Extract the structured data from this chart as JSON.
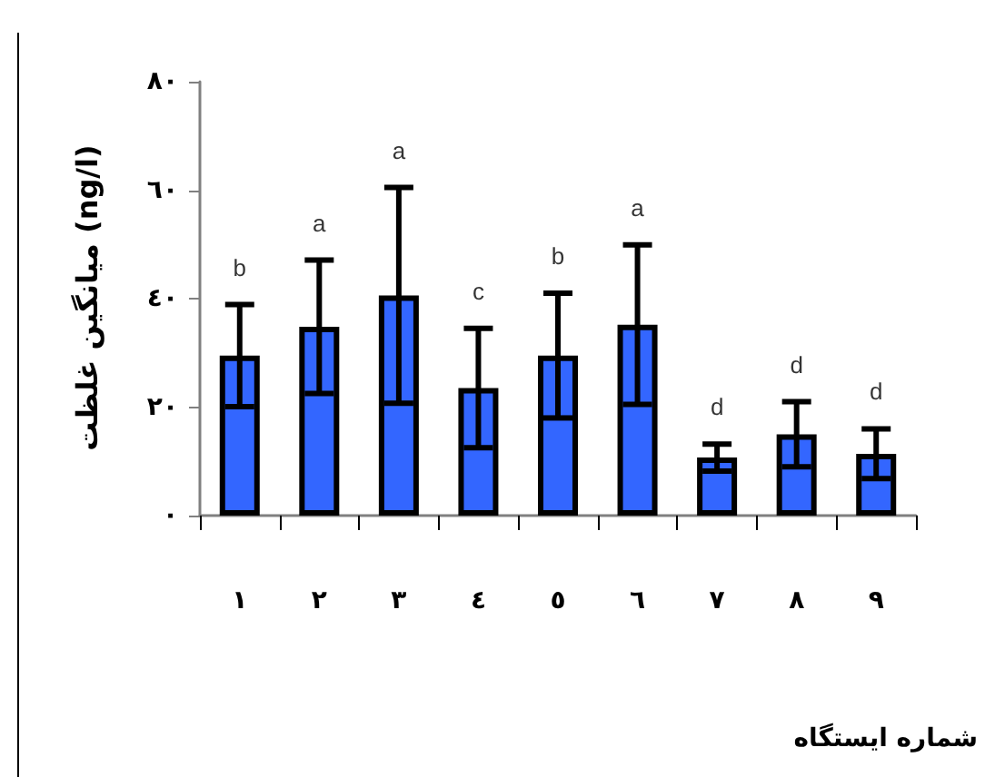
{
  "chart_data": {
    "type": "bar",
    "xlabel": "شماره ایستگاه",
    "ylabel": "میانگین غلظت (ng/l)",
    "categories": [
      "١",
      "٢",
      "٣",
      "٤",
      "٥",
      "٦",
      "٧",
      "٨",
      "٩"
    ],
    "values": [
      29.5,
      34.8,
      40.6,
      23.5,
      29.5,
      35.2,
      10.7,
      15.0,
      11.4
    ],
    "errors": [
      9.4,
      12.3,
      19.9,
      11.0,
      11.5,
      14.7,
      2.5,
      6.0,
      4.6
    ],
    "color": "#3366ff",
    "ylim": [
      0,
      80
    ],
    "yticks": [
      {
        "value": 0,
        "label": "٠"
      },
      {
        "value": 20,
        "label": "٢٠"
      },
      {
        "value": 40,
        "label": "٤٠"
      },
      {
        "value": 60,
        "label": "٦٠"
      },
      {
        "value": 80,
        "label": "٨٠"
      }
    ],
    "grid": false,
    "annotations": [
      {
        "text": "b",
        "x": "١",
        "y": 38.9
      },
      {
        "text": "a",
        "x": "٢",
        "y": 47.1
      },
      {
        "text": "a",
        "x": "٣",
        "y": 60.5
      },
      {
        "text": "c",
        "x": "٤",
        "y": 34.5
      },
      {
        "text": "b",
        "x": "٥",
        "y": 41.0
      },
      {
        "text": "a",
        "x": "٦",
        "y": 49.9
      },
      {
        "text": "d",
        "x": "٧",
        "y": 13.2
      },
      {
        "text": "d",
        "x": "٨",
        "y": 21.0
      },
      {
        "text": "d",
        "x": "٩",
        "y": 16.0
      }
    ]
  }
}
